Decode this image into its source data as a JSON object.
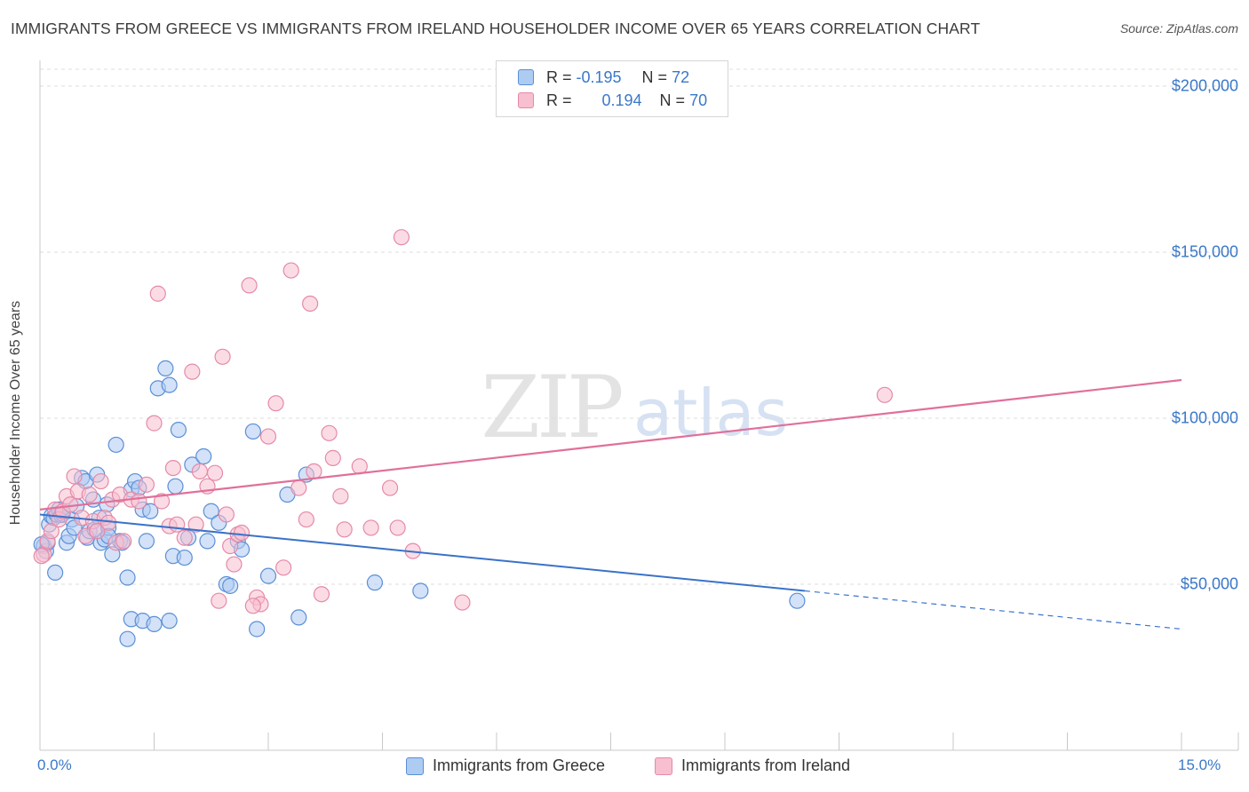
{
  "header": {
    "title": "IMMIGRANTS FROM GREECE VS IMMIGRANTS FROM IRELAND HOUSEHOLDER INCOME OVER 65 YEARS CORRELATION CHART",
    "source": "Source: ZipAtlas.com"
  },
  "watermark": {
    "zip": "ZIP",
    "atlas": "atlas"
  },
  "legend": {
    "r_label": "R =",
    "n_label": "N =",
    "series": [
      {
        "r": "-0.195",
        "n": "72"
      },
      {
        "r": "0.194",
        "n": "70"
      }
    ]
  },
  "bottom_legend": {
    "items": [
      "Immigrants from Greece",
      "Immigrants from Ireland"
    ]
  },
  "colors": {
    "greece_fill": "#aecbf2",
    "greece_stroke": "#5b8fd6",
    "greece_line": "#3a72c9",
    "ireland_fill": "#f7bfd0",
    "ireland_stroke": "#e58aa8",
    "ireland_line": "#e0709a",
    "grid": "#dcdcdc",
    "tick_label": "#3a78c9"
  },
  "chart_data": {
    "type": "scatter",
    "title": "IMMIGRANTS FROM GREECE VS IMMIGRANTS FROM IRELAND HOUSEHOLDER INCOME OVER 65 YEARS CORRELATION CHART",
    "xlabel": "",
    "ylabel": "Householder Income Over 65 years",
    "xlim": [
      0,
      15
    ],
    "ylim": [
      0,
      210000
    ],
    "x_tick_labels": [
      "0.0%",
      "15.0%"
    ],
    "y_ticks": [
      50000,
      100000,
      150000,
      200000
    ],
    "y_tick_labels": [
      "$50,000",
      "$100,000",
      "$150,000",
      "$200,000"
    ],
    "grid": true,
    "legend_position": "top-center",
    "series": [
      {
        "name": "Immigrants from Greece",
        "r": -0.195,
        "n": 72,
        "trend": {
          "x": [
            0,
            10.05
          ],
          "y": [
            71000,
            48000
          ],
          "dashed_to": [
            15,
            36500
          ]
        },
        "points": [
          [
            0.05,
            61500
          ],
          [
            0.08,
            60000
          ],
          [
            0.1,
            62500
          ],
          [
            0.12,
            68000
          ],
          [
            0.15,
            70500
          ],
          [
            0.18,
            70000
          ],
          [
            0.2,
            53500
          ],
          [
            0.22,
            71000
          ],
          [
            0.25,
            72500
          ],
          [
            0.28,
            70800
          ],
          [
            0.3,
            71200
          ],
          [
            0.35,
            62500
          ],
          [
            0.38,
            64500
          ],
          [
            0.42,
            69500
          ],
          [
            0.45,
            67000
          ],
          [
            0.48,
            73500
          ],
          [
            0.55,
            82000
          ],
          [
            0.6,
            81000
          ],
          [
            0.62,
            64000
          ],
          [
            0.65,
            66000
          ],
          [
            0.7,
            75500
          ],
          [
            0.72,
            66500
          ],
          [
            0.75,
            83000
          ],
          [
            0.78,
            70000
          ],
          [
            0.8,
            62500
          ],
          [
            0.85,
            63500
          ],
          [
            0.88,
            74000
          ],
          [
            0.9,
            67000
          ],
          [
            0.95,
            59000
          ],
          [
            1.0,
            92000
          ],
          [
            1.05,
            63000
          ],
          [
            1.08,
            62500
          ],
          [
            1.15,
            52000
          ],
          [
            1.2,
            78500
          ],
          [
            1.25,
            81000
          ],
          [
            1.3,
            79000
          ],
          [
            1.35,
            72500
          ],
          [
            1.4,
            63000
          ],
          [
            1.45,
            72000
          ],
          [
            1.55,
            109000
          ],
          [
            1.65,
            115000
          ],
          [
            1.7,
            110000
          ],
          [
            1.75,
            58500
          ],
          [
            1.78,
            79500
          ],
          [
            1.82,
            96500
          ],
          [
            1.9,
            58000
          ],
          [
            1.95,
            64000
          ],
          [
            2.0,
            86000
          ],
          [
            2.15,
            88500
          ],
          [
            2.25,
            72000
          ],
          [
            2.35,
            68500
          ],
          [
            2.45,
            50000
          ],
          [
            2.5,
            49500
          ],
          [
            2.6,
            63000
          ],
          [
            2.65,
            60500
          ],
          [
            2.8,
            96000
          ],
          [
            2.85,
            36500
          ],
          [
            3.0,
            52500
          ],
          [
            3.25,
            77000
          ],
          [
            3.4,
            40000
          ],
          [
            3.5,
            83000
          ],
          [
            4.4,
            50500
          ],
          [
            5.0,
            48000
          ],
          [
            1.2,
            39500
          ],
          [
            1.35,
            39000
          ],
          [
            1.5,
            38000
          ],
          [
            1.7,
            39000
          ],
          [
            1.15,
            33500
          ],
          [
            0.9,
            64500
          ],
          [
            2.2,
            63000
          ],
          [
            9.95,
            45000
          ],
          [
            0.02,
            62000
          ]
        ]
      },
      {
        "name": "Immigrants from Ireland",
        "r": 0.194,
        "n": 70,
        "trend": {
          "x": [
            0,
            15
          ],
          "y": [
            72500,
            111500
          ]
        },
        "points": [
          [
            0.05,
            59000
          ],
          [
            0.1,
            63000
          ],
          [
            0.15,
            66000
          ],
          [
            0.2,
            72500
          ],
          [
            0.25,
            69500
          ],
          [
            0.3,
            72000
          ],
          [
            0.35,
            76500
          ],
          [
            0.4,
            74000
          ],
          [
            0.45,
            82500
          ],
          [
            0.5,
            78000
          ],
          [
            0.55,
            70000
          ],
          [
            0.6,
            64500
          ],
          [
            0.65,
            77000
          ],
          [
            0.7,
            69000
          ],
          [
            0.75,
            66000
          ],
          [
            0.8,
            81000
          ],
          [
            0.85,
            70000
          ],
          [
            0.9,
            68500
          ],
          [
            0.95,
            75500
          ],
          [
            1.0,
            62500
          ],
          [
            1.05,
            77000
          ],
          [
            1.1,
            63000
          ],
          [
            1.2,
            75500
          ],
          [
            1.3,
            75000
          ],
          [
            1.4,
            80000
          ],
          [
            1.5,
            98500
          ],
          [
            1.55,
            137500
          ],
          [
            1.6,
            75000
          ],
          [
            1.7,
            67500
          ],
          [
            1.75,
            85000
          ],
          [
            1.8,
            68000
          ],
          [
            1.9,
            64000
          ],
          [
            2.0,
            114000
          ],
          [
            2.05,
            68000
          ],
          [
            2.1,
            84000
          ],
          [
            2.2,
            79500
          ],
          [
            2.3,
            83500
          ],
          [
            2.35,
            45000
          ],
          [
            2.4,
            118500
          ],
          [
            2.45,
            71000
          ],
          [
            2.5,
            61500
          ],
          [
            2.55,
            56000
          ],
          [
            2.6,
            65000
          ],
          [
            2.65,
            65500
          ],
          [
            2.75,
            140000
          ],
          [
            2.85,
            46000
          ],
          [
            2.9,
            44000
          ],
          [
            3.0,
            94500
          ],
          [
            3.1,
            104500
          ],
          [
            3.2,
            55000
          ],
          [
            3.3,
            144500
          ],
          [
            3.4,
            79000
          ],
          [
            3.5,
            69500
          ],
          [
            3.55,
            134500
          ],
          [
            3.6,
            84000
          ],
          [
            3.7,
            47000
          ],
          [
            3.8,
            95500
          ],
          [
            3.85,
            88000
          ],
          [
            3.95,
            76500
          ],
          [
            4.0,
            66500
          ],
          [
            4.2,
            85500
          ],
          [
            4.35,
            67000
          ],
          [
            4.6,
            79000
          ],
          [
            4.7,
            67000
          ],
          [
            4.75,
            154500
          ],
          [
            4.9,
            60000
          ],
          [
            5.55,
            44500
          ],
          [
            11.1,
            107000
          ],
          [
            0.02,
            58500
          ],
          [
            2.8,
            43500
          ]
        ]
      }
    ]
  }
}
